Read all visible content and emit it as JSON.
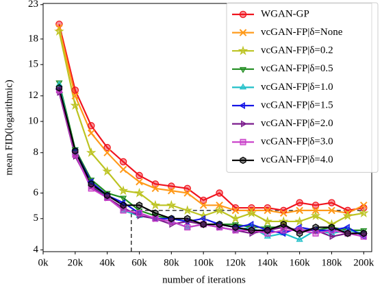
{
  "chart_data": {
    "type": "line",
    "xlabel": "number of iterations",
    "ylabel": "mean FID(logarithmic)",
    "log_y": true,
    "legend": "upper right",
    "xlim": [
      0,
      205000
    ],
    "ylim": [
      3.95,
      23.2
    ],
    "xticks": [
      {
        "value": 0,
        "label": "0k"
      },
      {
        "value": 20000,
        "label": "20k"
      },
      {
        "value": 40000,
        "label": "40k"
      },
      {
        "value": 60000,
        "label": "60k"
      },
      {
        "value": 80000,
        "label": "80k"
      },
      {
        "value": 100000,
        "label": "100k"
      },
      {
        "value": 120000,
        "label": "120k"
      },
      {
        "value": 140000,
        "label": "140k"
      },
      {
        "value": 160000,
        "label": "160k"
      },
      {
        "value": 180000,
        "label": "180k"
      },
      {
        "value": 200000,
        "label": "200k"
      }
    ],
    "yticks": [
      4,
      5,
      6,
      8,
      10,
      12,
      15,
      18,
      23
    ],
    "x": [
      10000,
      20000,
      30000,
      40000,
      50000,
      60000,
      70000,
      80000,
      90000,
      100000,
      110000,
      120000,
      130000,
      140000,
      150000,
      160000,
      170000,
      180000,
      190000,
      200000
    ],
    "series": [
      {
        "name": "WGAN-GP",
        "color": "#f0141e",
        "marker": "circle",
        "values": [
          20.0,
          12.5,
          9.7,
          8.3,
          7.5,
          6.8,
          6.4,
          6.3,
          6.2,
          5.7,
          6.0,
          5.4,
          5.4,
          5.4,
          5.3,
          5.6,
          5.5,
          5.6,
          5.3,
          5.4
        ]
      },
      {
        "name": "vcGAN-FP|δ=None",
        "color": "#ff9a1a",
        "marker": "x",
        "values": [
          19.5,
          12.0,
          9.2,
          8.0,
          7.1,
          6.5,
          6.2,
          6.1,
          6.0,
          5.5,
          5.5,
          5.3,
          5.3,
          5.3,
          5.2,
          5.3,
          5.3,
          5.3,
          5.2,
          5.5
        ]
      },
      {
        "name": "vcGAN-FP|δ=0.2",
        "color": "#bcc321",
        "marker": "star",
        "values": [
          19.0,
          11.2,
          8.0,
          7.0,
          6.1,
          6.0,
          5.5,
          5.5,
          5.3,
          5.1,
          5.3,
          5.0,
          5.2,
          4.9,
          4.9,
          4.9,
          5.1,
          4.8,
          5.1,
          5.2
        ]
      },
      {
        "name": "vcGAN-FP|δ=0.5",
        "color": "#1e8c1e",
        "marker": "triangle-down",
        "values": [
          13.2,
          8.2,
          6.6,
          6.0,
          5.8,
          5.3,
          5.1,
          5.0,
          4.9,
          4.8,
          4.8,
          4.8,
          4.7,
          4.7,
          4.7,
          4.6,
          4.6,
          4.7,
          4.6,
          4.6
        ]
      },
      {
        "name": "vcGAN-FP|δ=1.0",
        "color": "#1ebfc8",
        "marker": "triangle-up",
        "values": [
          13.0,
          8.0,
          6.4,
          5.8,
          5.3,
          5.1,
          5.0,
          4.9,
          4.7,
          4.8,
          4.7,
          4.6,
          4.7,
          4.4,
          4.5,
          4.3,
          4.6,
          4.5,
          4.6,
          4.5
        ]
      },
      {
        "name": "vcGAN-FP|δ=1.5",
        "color": "#1414e6",
        "marker": "triangle-left",
        "values": [
          12.6,
          8.1,
          6.5,
          5.9,
          5.6,
          5.2,
          5.0,
          5.0,
          4.9,
          5.0,
          4.8,
          4.7,
          4.8,
          4.6,
          4.5,
          4.7,
          4.6,
          4.6,
          4.7,
          4.4
        ]
      },
      {
        "name": "vcGAN-FP|δ=2.0",
        "color": "#7a1a8c",
        "marker": "triangle-right",
        "values": [
          12.3,
          7.8,
          6.3,
          5.8,
          5.4,
          5.1,
          5.0,
          4.8,
          4.9,
          4.8,
          4.7,
          4.6,
          4.5,
          4.6,
          4.7,
          4.6,
          4.6,
          4.4,
          4.5,
          4.5
        ]
      },
      {
        "name": "vcGAN-FP|δ=3.0",
        "color": "#c83cc8",
        "marker": "square",
        "values": [
          12.5,
          7.9,
          6.2,
          5.8,
          5.3,
          5.2,
          5.0,
          4.9,
          4.7,
          4.8,
          4.7,
          4.6,
          4.6,
          4.5,
          4.6,
          4.6,
          4.5,
          4.6,
          4.5,
          4.4
        ]
      },
      {
        "name": "vcGAN-FP|δ=4.0",
        "color": "#000000",
        "marker": "hexagon",
        "values": [
          12.7,
          8.1,
          6.4,
          5.9,
          5.5,
          5.5,
          5.2,
          5.0,
          5.0,
          4.8,
          4.8,
          4.7,
          4.6,
          4.6,
          4.8,
          4.5,
          4.7,
          4.7,
          4.5,
          4.5
        ]
      }
    ],
    "reference_lines": [
      {
        "x": [
          55000,
          200000
        ],
        "y": [
          5.3,
          5.3
        ]
      },
      {
        "x": [
          55000,
          55000
        ],
        "y": [
          3.95,
          5.3
        ]
      }
    ]
  }
}
